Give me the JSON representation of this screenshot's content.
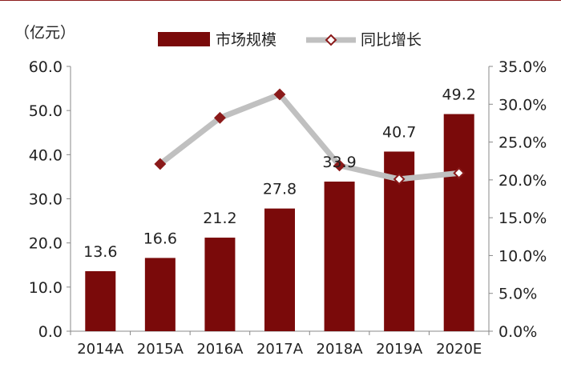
{
  "chart_data": {
    "type": "bar+line",
    "unit_label": "（亿元）",
    "categories": [
      "2014A",
      "2015A",
      "2016A",
      "2017A",
      "2018A",
      "2019A",
      "2020E"
    ],
    "series": [
      {
        "name": "市场规模",
        "type": "bar",
        "axis": "left",
        "color": "#7a0a0a",
        "values": [
          13.6,
          16.6,
          21.2,
          27.8,
          33.9,
          40.7,
          49.2
        ],
        "labels": [
          "13.6",
          "16.6",
          "21.2",
          "27.8",
          "33.9",
          "40.7",
          "49.2"
        ]
      },
      {
        "name": "同比增长",
        "type": "line",
        "axis": "right",
        "color": "#c0c0c0",
        "marker": "diamond",
        "marker_colors": [
          "#8b1a1a",
          "#8b1a1a",
          "#8b1a1a",
          "#8b1a1a",
          "#ffffff",
          "#ffffff"
        ],
        "x": [
          "2015A",
          "2016A",
          "2017A",
          "2018A",
          "2019A",
          "2020E"
        ],
        "values": [
          22.1,
          28.2,
          31.3,
          21.9,
          20.1,
          20.9
        ]
      }
    ],
    "y_left": {
      "min": 0,
      "max": 60,
      "step": 10,
      "ticks": [
        "0.0",
        "10.0",
        "20.0",
        "30.0",
        "40.0",
        "50.0",
        "60.0"
      ]
    },
    "y_right": {
      "min": 0,
      "max": 35,
      "step": 5,
      "ticks": [
        "0.0%",
        "5.0%",
        "10.0%",
        "15.0%",
        "20.0%",
        "25.0%",
        "30.0%",
        "35.0%"
      ]
    },
    "grid": false,
    "legend": "top-center"
  }
}
